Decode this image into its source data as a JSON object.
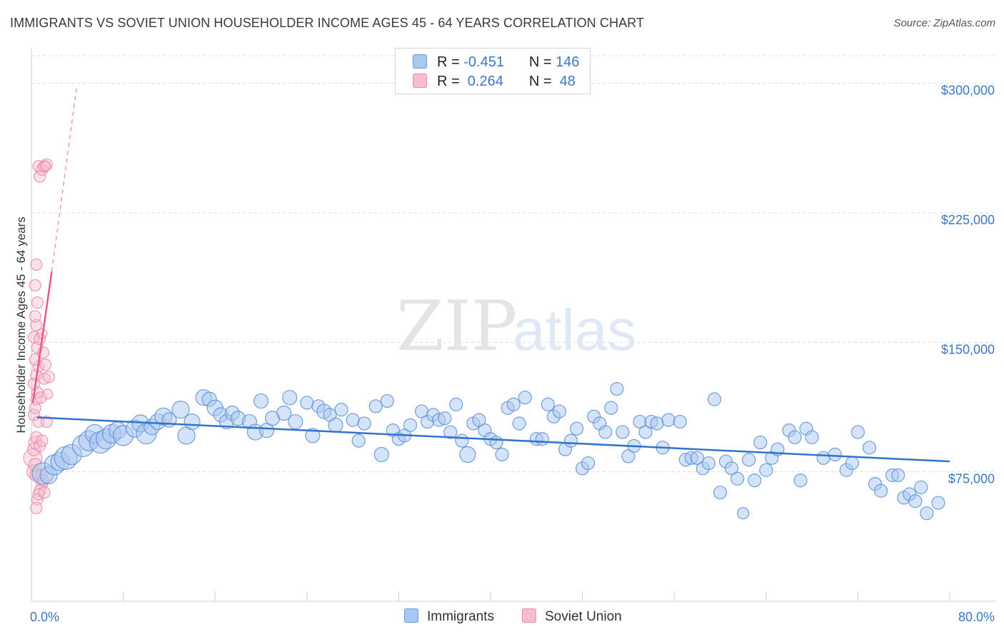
{
  "header": {
    "title": "IMMIGRANTS VS SOVIET UNION HOUSEHOLDER INCOME AGES 45 - 64 YEARS CORRELATION CHART",
    "source": "Source: ZipAtlas.com"
  },
  "watermark": {
    "zip": "ZIP",
    "atlas": "atlas"
  },
  "legend": {
    "rows": [
      {
        "r_label": "R =",
        "r_value": "-0.451",
        "n_label": "N =",
        "n_value": "146",
        "color": "#a9c8f0",
        "border": "#6a9ad8"
      },
      {
        "r_label": "R =",
        "r_value": " 0.264",
        "n_label": "N =",
        "n_value": " 48",
        "color": "#f7bcd0",
        "border": "#e98aab"
      }
    ]
  },
  "bottom_legend": {
    "items": [
      {
        "label": "Immigrants",
        "color": "#a9c8f0"
      },
      {
        "label": "Soviet Union",
        "color": "#f7bcd0"
      }
    ]
  },
  "chart_data": {
    "type": "scatter",
    "title": "IMMIGRANTS VS SOVIET UNION HOUSEHOLDER INCOME AGES 45 - 64 YEARS CORRELATION CHART",
    "xlabel": "",
    "ylabel": "Householder Income Ages 45 - 64 years",
    "xlim": [
      0,
      80
    ],
    "ylim": [
      0,
      316000
    ],
    "x_tick_labels": [
      "0.0%",
      "80.0%"
    ],
    "y_ticks": [
      75000,
      150000,
      225000,
      300000
    ],
    "y_tick_labels": [
      "$75,000",
      "$150,000",
      "$225,000",
      "$300,000"
    ],
    "grid": true,
    "colors": {
      "immigrants_fill": "#a9c8f0",
      "immigrants_stroke": "#5b8fd6",
      "immigrants_line": "#2f74cf",
      "soviet_fill": "#f7bcd0",
      "soviet_stroke": "#e985a7",
      "soviet_line": "#e8588a"
    },
    "series": [
      {
        "name": "Immigrants",
        "trend": {
          "x": [
            0.5,
            80
          ],
          "y": [
            106500,
            81000
          ],
          "style": "solid"
        },
        "points": [
          [
            1.0,
            74000,
            15
          ],
          [
            1.5,
            73000,
            12
          ],
          [
            2.0,
            79000,
            14
          ],
          [
            2.5,
            81000,
            13
          ],
          [
            3.0,
            83000,
            16
          ],
          [
            3.5,
            85000,
            14
          ],
          [
            4.5,
            90000,
            15
          ],
          [
            5.0,
            93000,
            14
          ],
          [
            5.5,
            97000,
            13
          ],
          [
            6.0,
            92000,
            15
          ],
          [
            6.5,
            94000,
            14
          ],
          [
            7.0,
            97000,
            13
          ],
          [
            7.5,
            99000,
            12
          ],
          [
            8.0,
            96000,
            14
          ],
          [
            9.0,
            100000,
            12
          ],
          [
            9.5,
            103000,
            12
          ],
          [
            10.0,
            97000,
            14
          ],
          [
            10.5,
            101000,
            11
          ],
          [
            11.0,
            104000,
            11
          ],
          [
            11.5,
            107000,
            12
          ],
          [
            12.0,
            105000,
            10
          ],
          [
            13.0,
            111000,
            12
          ],
          [
            13.5,
            96000,
            12
          ],
          [
            14.0,
            104000,
            11
          ],
          [
            15.0,
            118000,
            11
          ],
          [
            15.5,
            117000,
            10
          ],
          [
            16.0,
            112000,
            11
          ],
          [
            16.5,
            108000,
            10
          ],
          [
            17.0,
            104000,
            10
          ],
          [
            17.5,
            109000,
            10
          ],
          [
            18.0,
            106000,
            10
          ],
          [
            19.0,
            104000,
            10
          ],
          [
            19.5,
            98000,
            11
          ],
          [
            20.0,
            116000,
            10
          ],
          [
            20.5,
            99000,
            10
          ],
          [
            21.0,
            106000,
            10
          ],
          [
            22.0,
            109000,
            10
          ],
          [
            22.5,
            118000,
            10
          ],
          [
            23.0,
            104000,
            10
          ],
          [
            24.0,
            115000,
            9
          ],
          [
            24.5,
            96000,
            10
          ],
          [
            25.0,
            113000,
            9
          ],
          [
            25.5,
            110000,
            10
          ],
          [
            26.0,
            108000,
            9
          ],
          [
            26.5,
            102000,
            10
          ],
          [
            27.0,
            111000,
            9
          ],
          [
            28.0,
            105000,
            9
          ],
          [
            28.5,
            93000,
            9
          ],
          [
            29.0,
            103000,
            9
          ],
          [
            30.0,
            113000,
            9
          ],
          [
            30.5,
            85000,
            10
          ],
          [
            31.0,
            116000,
            9
          ],
          [
            31.5,
            99000,
            9
          ],
          [
            32.0,
            94000,
            9
          ],
          [
            32.5,
            96000,
            9
          ],
          [
            33.0,
            102000,
            9
          ],
          [
            34.0,
            110000,
            9
          ],
          [
            34.5,
            104000,
            9
          ],
          [
            35.0,
            108000,
            9
          ],
          [
            35.5,
            105000,
            9
          ],
          [
            36.0,
            106000,
            9
          ],
          [
            36.5,
            98000,
            9
          ],
          [
            37.0,
            114000,
            9
          ],
          [
            37.5,
            93000,
            9
          ],
          [
            38.0,
            85000,
            11
          ],
          [
            38.5,
            103000,
            9
          ],
          [
            39.0,
            105000,
            9
          ],
          [
            39.5,
            99000,
            9
          ],
          [
            40.0,
            94000,
            9
          ],
          [
            40.5,
            92000,
            9
          ],
          [
            41.0,
            85000,
            9
          ],
          [
            41.5,
            112000,
            9
          ],
          [
            42.0,
            114000,
            9
          ],
          [
            42.5,
            103000,
            9
          ],
          [
            43.0,
            118000,
            9
          ],
          [
            44.0,
            94000,
            9
          ],
          [
            44.5,
            94000,
            9
          ],
          [
            45.0,
            114000,
            9
          ],
          [
            45.5,
            107000,
            9
          ],
          [
            46.0,
            110000,
            9
          ],
          [
            46.5,
            88000,
            9
          ],
          [
            47.0,
            93000,
            9
          ],
          [
            47.5,
            100000,
            9
          ],
          [
            48.0,
            77000,
            9
          ],
          [
            48.5,
            80000,
            9
          ],
          [
            49.0,
            107000,
            9
          ],
          [
            49.5,
            103000,
            9
          ],
          [
            50.0,
            98000,
            9
          ],
          [
            50.5,
            112000,
            9
          ],
          [
            51.0,
            123000,
            9
          ],
          [
            51.5,
            98000,
            9
          ],
          [
            52.0,
            84000,
            9
          ],
          [
            52.5,
            90000,
            9
          ],
          [
            53.0,
            104000,
            9
          ],
          [
            53.5,
            98000,
            9
          ],
          [
            54.0,
            104000,
            9
          ],
          [
            54.5,
            103000,
            9
          ],
          [
            55.0,
            89000,
            9
          ],
          [
            55.5,
            105000,
            9
          ],
          [
            56.5,
            104000,
            9
          ],
          [
            57.0,
            82000,
            9
          ],
          [
            57.5,
            83000,
            9
          ],
          [
            58.0,
            83000,
            9
          ],
          [
            58.5,
            77000,
            9
          ],
          [
            59.0,
            80000,
            9
          ],
          [
            59.5,
            117000,
            9
          ],
          [
            60.0,
            63000,
            9
          ],
          [
            60.5,
            81000,
            9
          ],
          [
            61.0,
            77000,
            9
          ],
          [
            61.5,
            71000,
            9
          ],
          [
            62.0,
            51000,
            8
          ],
          [
            62.5,
            82000,
            9
          ],
          [
            63.0,
            70000,
            9
          ],
          [
            63.5,
            92000,
            9
          ],
          [
            64.0,
            76000,
            9
          ],
          [
            64.5,
            83000,
            9
          ],
          [
            65.0,
            88000,
            9
          ],
          [
            66.0,
            99000,
            9
          ],
          [
            66.5,
            95000,
            9
          ],
          [
            67.0,
            70000,
            9
          ],
          [
            67.5,
            100000,
            9
          ],
          [
            68.0,
            95000,
            9
          ],
          [
            69.0,
            83000,
            9
          ],
          [
            70.0,
            85000,
            9
          ],
          [
            71.0,
            76000,
            9
          ],
          [
            71.5,
            80000,
            9
          ],
          [
            72.0,
            98000,
            9
          ],
          [
            73.0,
            89000,
            9
          ],
          [
            73.5,
            68000,
            9
          ],
          [
            74.0,
            64000,
            9
          ],
          [
            75.0,
            73000,
            9
          ],
          [
            75.5,
            73000,
            9
          ],
          [
            76.0,
            60000,
            9
          ],
          [
            76.5,
            62000,
            9
          ],
          [
            77.0,
            58000,
            9
          ],
          [
            77.5,
            66000,
            9
          ],
          [
            78.0,
            51000,
            9
          ],
          [
            79.0,
            57000,
            9
          ]
        ]
      },
      {
        "name": "Soviet Union",
        "trend": {
          "x": [
            0.0,
            1.65
          ],
          "y": [
            115000,
            191000
          ],
          "style": "solid",
          "dashed_extension": {
            "x": [
              1.65,
              3.8
            ],
            "y": [
              191000,
              297000
            ]
          }
        },
        "points": [
          [
            0.0,
            83000,
            13
          ],
          [
            0.1,
            75000,
            10
          ],
          [
            0.2,
            79000,
            9
          ],
          [
            0.3,
            73000,
            9
          ],
          [
            0.1,
            88000,
            9
          ],
          [
            0.2,
            92000,
            9
          ],
          [
            0.3,
            95000,
            8
          ],
          [
            0.1,
            108000,
            8
          ],
          [
            0.2,
            112000,
            8
          ],
          [
            0.3,
            117000,
            8
          ],
          [
            0.4,
            121000,
            8
          ],
          [
            0.1,
            126000,
            8
          ],
          [
            0.3,
            131000,
            8
          ],
          [
            0.5,
            136000,
            8
          ],
          [
            0.2,
            140000,
            8
          ],
          [
            0.4,
            147000,
            8
          ],
          [
            0.1,
            153000,
            8
          ],
          [
            0.3,
            160000,
            8
          ],
          [
            0.2,
            165000,
            8
          ],
          [
            0.4,
            173000,
            8
          ],
          [
            0.2,
            183000,
            8
          ],
          [
            0.3,
            195000,
            8
          ],
          [
            0.5,
            252000,
            8
          ],
          [
            0.6,
            246000,
            8
          ],
          [
            0.8,
            250000,
            8
          ],
          [
            1.0,
            252000,
            8
          ],
          [
            1.2,
            253000,
            8
          ],
          [
            1.1,
            252000,
            7
          ],
          [
            0.7,
            73000,
            8
          ],
          [
            0.8,
            68000,
            8
          ],
          [
            0.6,
            64000,
            8
          ],
          [
            0.4,
            59000,
            8
          ],
          [
            0.3,
            54000,
            8
          ],
          [
            0.5,
            62000,
            8
          ],
          [
            0.9,
            70000,
            8
          ],
          [
            1.0,
            63000,
            8
          ],
          [
            0.6,
            90000,
            8
          ],
          [
            0.8,
            93000,
            8
          ],
          [
            0.5,
            104000,
            8
          ],
          [
            1.2,
            104000,
            8
          ],
          [
            0.7,
            118000,
            8
          ],
          [
            1.0,
            129000,
            8
          ],
          [
            1.1,
            137000,
            8
          ],
          [
            0.9,
            144000,
            8
          ],
          [
            0.6,
            152000,
            8
          ],
          [
            0.8,
            155000,
            7
          ],
          [
            1.4,
            130000,
            8
          ],
          [
            1.3,
            120000,
            7
          ]
        ]
      }
    ]
  }
}
